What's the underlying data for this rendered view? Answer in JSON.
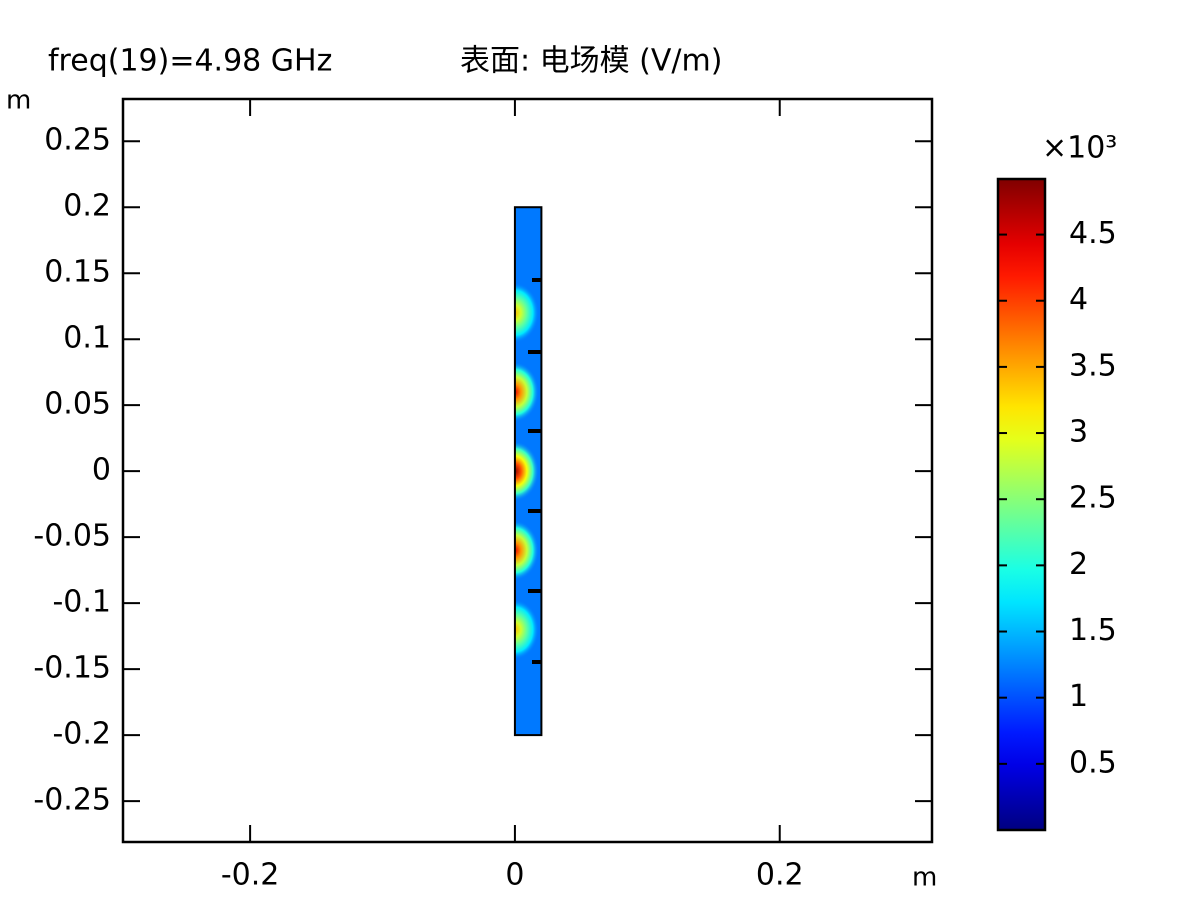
{
  "chart_data": {
    "type": "surface",
    "title": "freq(19)=4.98 GHz",
    "subtitle": "表面: 电场模 (V/m)",
    "x_label": "m",
    "y_label": "m",
    "xlim": [
      -0.296,
      0.315
    ],
    "ylim": [
      -0.281,
      0.282
    ],
    "xticks": [
      -0.2,
      0,
      0.2
    ],
    "yticks": [
      0.25,
      0.2,
      0.15,
      0.1,
      0.05,
      0,
      -0.05,
      -0.1,
      -0.15,
      -0.2,
      -0.25
    ],
    "colormap": "jet",
    "colorbar": {
      "multiplier": "×10³",
      "clim": [
        0,
        4.92
      ],
      "ticks": [
        4.5,
        4,
        3.5,
        3,
        2.5,
        2,
        1.5,
        1,
        0.5
      ]
    },
    "strip_x": [
      0,
      0.02
    ],
    "strip_y": [
      -0.2,
      0.2
    ],
    "edge_value": 1.2,
    "peaks": {
      "y": [
        0.12,
        0.06,
        0,
        -0.06,
        -0.12
      ],
      "values": [
        3.4,
        4.4,
        4.85,
        4.4,
        3.4
      ]
    }
  }
}
